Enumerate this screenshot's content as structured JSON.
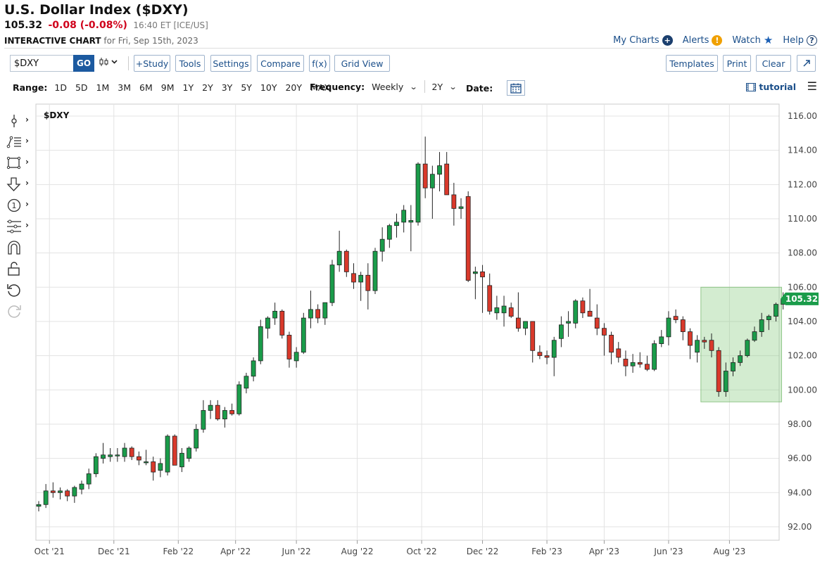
{
  "header": {
    "title": "U.S. Dollar Index ($DXY)",
    "last": "105.32",
    "change": "-0.08 (-0.08%)",
    "time": "16:40 ET [ICE/US]",
    "chart_label": "INTERACTIVE CHART",
    "chart_for": "for Fri, Sep 15th, 2023"
  },
  "toplinks": {
    "my_charts": "My Charts",
    "alerts": "Alerts",
    "watch": "Watch",
    "help": "Help"
  },
  "toolbar": {
    "symbol": "$DXY",
    "go": "GO",
    "study": "+Study",
    "tools": "Tools",
    "settings": "Settings",
    "compare": "Compare",
    "fx": "f(x)",
    "grid_view": "Grid View",
    "templates": "Templates",
    "print": "Print",
    "clear": "Clear"
  },
  "rangebar": {
    "label": "Range:",
    "ranges": [
      "1D",
      "5D",
      "1M",
      "3M",
      "6M",
      "9M",
      "1Y",
      "2Y",
      "3Y",
      "5Y",
      "10Y",
      "20Y",
      "MAX"
    ],
    "frequency_label": "Frequency:",
    "frequency": "Weekly",
    "period": "2Y",
    "date_label": "Date:",
    "tutorial": "tutorial"
  },
  "colors": {
    "up": "#1a9c4a",
    "down": "#d9392b",
    "link": "#1b4f8a",
    "last_badge": "#1a9c4a"
  },
  "chart_data": {
    "type": "candlestick",
    "symbol_label": "$DXY",
    "frequency": "weekly",
    "ylim": [
      91,
      116.8
    ],
    "y_ticks": [
      "92.00",
      "94.00",
      "96.00",
      "98.00",
      "100.00",
      "102.00",
      "104.00",
      "106.00",
      "108.00",
      "110.00",
      "112.00",
      "114.00",
      "116.00"
    ],
    "x_ticks": [
      "Oct '21",
      "Dec '21",
      "Feb '22",
      "Apr '22",
      "Jun '22",
      "Aug '22",
      "Oct '22",
      "Dec '22",
      "Feb '23",
      "Apr '23",
      "Jun '23",
      "Aug '23"
    ],
    "last_value": "105.32",
    "grid": true,
    "highlight_region": {
      "from_week": 93,
      "to_week": 103,
      "y_range": [
        99.3,
        106
      ]
    },
    "candles": [
      [
        93.2,
        93.5,
        92.9,
        93.3
      ],
      [
        93.3,
        94.5,
        93.1,
        94.1
      ],
      [
        94.1,
        94.6,
        93.7,
        94.0
      ],
      [
        94.0,
        94.3,
        93.6,
        94.1
      ],
      [
        94.1,
        94.2,
        93.5,
        93.8
      ],
      [
        93.8,
        94.4,
        93.4,
        94.3
      ],
      [
        94.2,
        94.7,
        93.9,
        94.5
      ],
      [
        94.5,
        95.4,
        94.2,
        95.1
      ],
      [
        95.1,
        96.3,
        94.9,
        96.1
      ],
      [
        96.0,
        96.9,
        95.7,
        96.2
      ],
      [
        96.1,
        96.6,
        95.8,
        96.2
      ],
      [
        96.2,
        96.6,
        95.8,
        96.2
      ],
      [
        96.1,
        96.9,
        95.8,
        96.6
      ],
      [
        96.6,
        96.7,
        95.9,
        96.1
      ],
      [
        96.1,
        96.4,
        95.6,
        95.9
      ],
      [
        95.8,
        96.5,
        95.6,
        95.8
      ],
      [
        95.8,
        96.1,
        94.7,
        95.2
      ],
      [
        95.3,
        96.0,
        94.9,
        95.7
      ],
      [
        95.2,
        97.4,
        95.0,
        97.3
      ],
      [
        97.3,
        97.4,
        95.6,
        95.6
      ],
      [
        95.5,
        96.6,
        95.2,
        96.3
      ],
      [
        96.0,
        96.7,
        95.8,
        96.6
      ],
      [
        96.6,
        98.0,
        96.4,
        97.7
      ],
      [
        97.7,
        99.4,
        97.5,
        98.8
      ],
      [
        98.8,
        99.4,
        98.3,
        99.1
      ],
      [
        99.1,
        99.4,
        98.2,
        98.3
      ],
      [
        98.3,
        99.0,
        97.8,
        98.8
      ],
      [
        98.8,
        99.2,
        98.5,
        98.6
      ],
      [
        98.6,
        100.5,
        98.5,
        100.3
      ],
      [
        100.1,
        101.0,
        99.8,
        100.8
      ],
      [
        100.8,
        101.9,
        100.5,
        101.7
      ],
      [
        101.7,
        104.1,
        101.5,
        103.7
      ],
      [
        103.6,
        104.3,
        103.0,
        104.2
      ],
      [
        104.2,
        105.1,
        103.8,
        104.6
      ],
      [
        104.6,
        104.7,
        103.0,
        103.2
      ],
      [
        103.2,
        103.4,
        101.3,
        101.8
      ],
      [
        101.7,
        102.5,
        101.3,
        102.2
      ],
      [
        102.2,
        104.5,
        102.1,
        104.2
      ],
      [
        104.2,
        105.8,
        103.6,
        104.7
      ],
      [
        104.7,
        105.0,
        103.9,
        104.2
      ],
      [
        104.2,
        105.1,
        103.8,
        105.1
      ],
      [
        105.1,
        107.6,
        104.9,
        107.3
      ],
      [
        107.3,
        109.3,
        106.9,
        108.1
      ],
      [
        108.1,
        108.2,
        106.6,
        106.9
      ],
      [
        106.8,
        107.4,
        105.9,
        106.3
      ],
      [
        106.3,
        106.9,
        105.2,
        106.7
      ],
      [
        106.7,
        107.4,
        104.7,
        105.8
      ],
      [
        105.8,
        108.3,
        105.6,
        108.1
      ],
      [
        108.1,
        109.5,
        107.5,
        108.8
      ],
      [
        108.8,
        109.7,
        108.3,
        109.6
      ],
      [
        109.6,
        110.3,
        108.9,
        109.8
      ],
      [
        109.8,
        110.8,
        109.2,
        110.5
      ],
      [
        109.8,
        110.8,
        108.1,
        109.9
      ],
      [
        109.8,
        113.3,
        109.6,
        113.2
      ],
      [
        113.2,
        114.8,
        111.2,
        111.8
      ],
      [
        111.8,
        113.1,
        110.0,
        112.6
      ],
      [
        112.6,
        113.9,
        111.6,
        113.1
      ],
      [
        113.2,
        113.9,
        111.4,
        111.4
      ],
      [
        111.4,
        112.1,
        109.6,
        110.6
      ],
      [
        110.6,
        111.2,
        110.0,
        110.7
      ],
      [
        111.3,
        111.6,
        106.3,
        106.4
      ],
      [
        106.8,
        107.2,
        105.3,
        106.9
      ],
      [
        106.9,
        107.3,
        104.5,
        106.6
      ],
      [
        106.1,
        106.8,
        104.4,
        104.6
      ],
      [
        104.5,
        105.5,
        104.1,
        104.8
      ],
      [
        104.5,
        105.5,
        103.7,
        104.9
      ],
      [
        104.8,
        105.1,
        104.2,
        104.3
      ],
      [
        104.2,
        105.7,
        103.4,
        103.6
      ],
      [
        103.6,
        104.0,
        103.2,
        104.0
      ],
      [
        104.0,
        104.0,
        101.6,
        102.3
      ],
      [
        102.2,
        102.6,
        101.8,
        102.0
      ],
      [
        102.0,
        102.3,
        101.5,
        101.9
      ],
      [
        101.9,
        103.1,
        100.8,
        102.9
      ],
      [
        103.0,
        104.3,
        102.5,
        103.8
      ],
      [
        103.9,
        104.6,
        103.1,
        104.0
      ],
      [
        103.9,
        105.3,
        103.6,
        105.2
      ],
      [
        105.2,
        105.4,
        104.2,
        104.5
      ],
      [
        104.6,
        105.9,
        104.5,
        104.3
      ],
      [
        104.2,
        105.0,
        103.2,
        103.6
      ],
      [
        103.6,
        103.9,
        102.0,
        103.2
      ],
      [
        103.2,
        103.4,
        101.5,
        102.2
      ],
      [
        102.4,
        102.8,
        101.6,
        101.9
      ],
      [
        101.8,
        102.3,
        100.8,
        101.4
      ],
      [
        101.4,
        102.1,
        101.0,
        101.6
      ],
      [
        101.6,
        102.2,
        101.3,
        101.5
      ],
      [
        101.5,
        102.0,
        101.1,
        101.2
      ],
      [
        101.2,
        102.9,
        101.1,
        102.7
      ],
      [
        102.7,
        103.5,
        102.5,
        103.1
      ],
      [
        103.1,
        104.6,
        102.6,
        104.2
      ],
      [
        104.3,
        104.7,
        103.9,
        104.1
      ],
      [
        104.1,
        104.3,
        102.9,
        103.4
      ],
      [
        103.4,
        103.6,
        101.8,
        102.6
      ],
      [
        102.2,
        103.2,
        101.6,
        102.9
      ],
      [
        102.9,
        103.1,
        102.4,
        102.8
      ],
      [
        102.9,
        103.3,
        101.9,
        102.3
      ],
      [
        102.3,
        102.5,
        99.6,
        99.9
      ],
      [
        99.9,
        101.6,
        99.6,
        101.1
      ],
      [
        101.1,
        101.9,
        100.8,
        101.6
      ],
      [
        101.6,
        102.3,
        101.4,
        102.0
      ],
      [
        102.0,
        103.0,
        101.9,
        102.9
      ],
      [
        102.9,
        103.7,
        102.8,
        103.4
      ],
      [
        103.4,
        104.5,
        103.1,
        104.1
      ],
      [
        104.1,
        104.4,
        103.5,
        104.3
      ],
      [
        104.3,
        105.1,
        104.0,
        105.0
      ],
      [
        105.0,
        105.7,
        104.7,
        105.32
      ]
    ]
  }
}
